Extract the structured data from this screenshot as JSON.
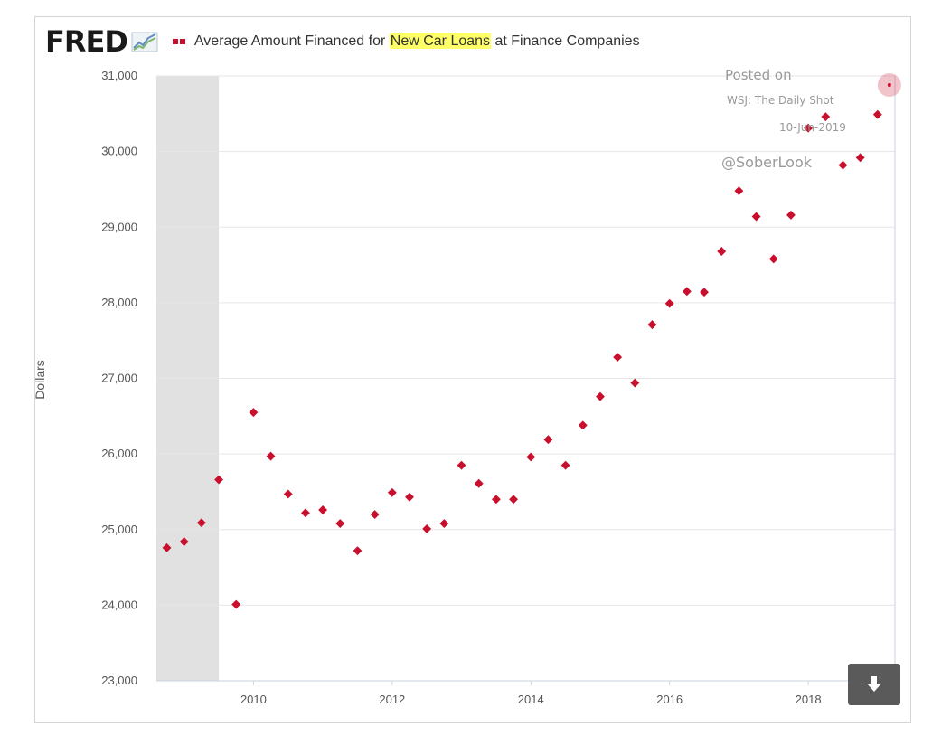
{
  "header": {
    "logo": "FRED",
    "title_pre": "Average Amount Financed for ",
    "title_highlight": "New Car Loans",
    "title_post": " at Finance Companies"
  },
  "watermark": {
    "posted_on": "Posted on",
    "source": "WSJ: The Daily Shot",
    "date": "10-Jun-2019",
    "handle": "@SoberLook"
  },
  "download_button": {
    "icon": "download-arrow-icon"
  },
  "colors": {
    "series": "#c8102e",
    "recession": "#e1e1e1",
    "highlight": "#ffff66",
    "grid": "#e6e6e6"
  },
  "chart_data": {
    "type": "scatter",
    "title": "Average Amount Financed for New Car Loans at Finance Companies",
    "ylabel": "Dollars",
    "xlabel": "",
    "ylim": [
      23000,
      31000
    ],
    "xlim": [
      2008.6,
      2019.25
    ],
    "yticks": [
      "23,000",
      "24,000",
      "25,000",
      "26,000",
      "27,000",
      "28,000",
      "29,000",
      "30,000",
      "31,000"
    ],
    "xticks": [
      "2010",
      "2012",
      "2014",
      "2016",
      "2018"
    ],
    "grid": true,
    "recession_shading": [
      [
        2008.6,
        2009.5
      ]
    ],
    "series": [
      {
        "x": [
          2008.75,
          2009.0,
          2009.25,
          2009.5,
          2009.75,
          2010.0,
          2010.25,
          2010.5,
          2010.75,
          2011.0,
          2011.25,
          2011.5,
          2011.75,
          2012.0,
          2012.25,
          2012.5,
          2012.75,
          2013.0,
          2013.25,
          2013.5,
          2013.75,
          2014.0,
          2014.25,
          2014.5,
          2014.75,
          2015.0,
          2015.25,
          2015.5,
          2015.75,
          2016.0,
          2016.25,
          2016.5,
          2016.75,
          2017.0,
          2017.25,
          2017.5,
          2017.75,
          2018.0,
          2018.25,
          2018.5,
          2018.75,
          2019.0,
          2019.17
        ],
        "y": [
          24760,
          24840,
          25090,
          25660,
          24010,
          26550,
          25970,
          25470,
          25220,
          25260,
          25080,
          24720,
          25200,
          25490,
          25430,
          25010,
          25080,
          25850,
          25610,
          25400,
          25400,
          25960,
          26190,
          25850,
          26380,
          26760,
          27280,
          26940,
          27710,
          27990,
          28150,
          28140,
          28680,
          29480,
          29140,
          28580,
          29160,
          30310,
          30460,
          29820,
          29920,
          30490,
          30880
        ]
      }
    ]
  }
}
